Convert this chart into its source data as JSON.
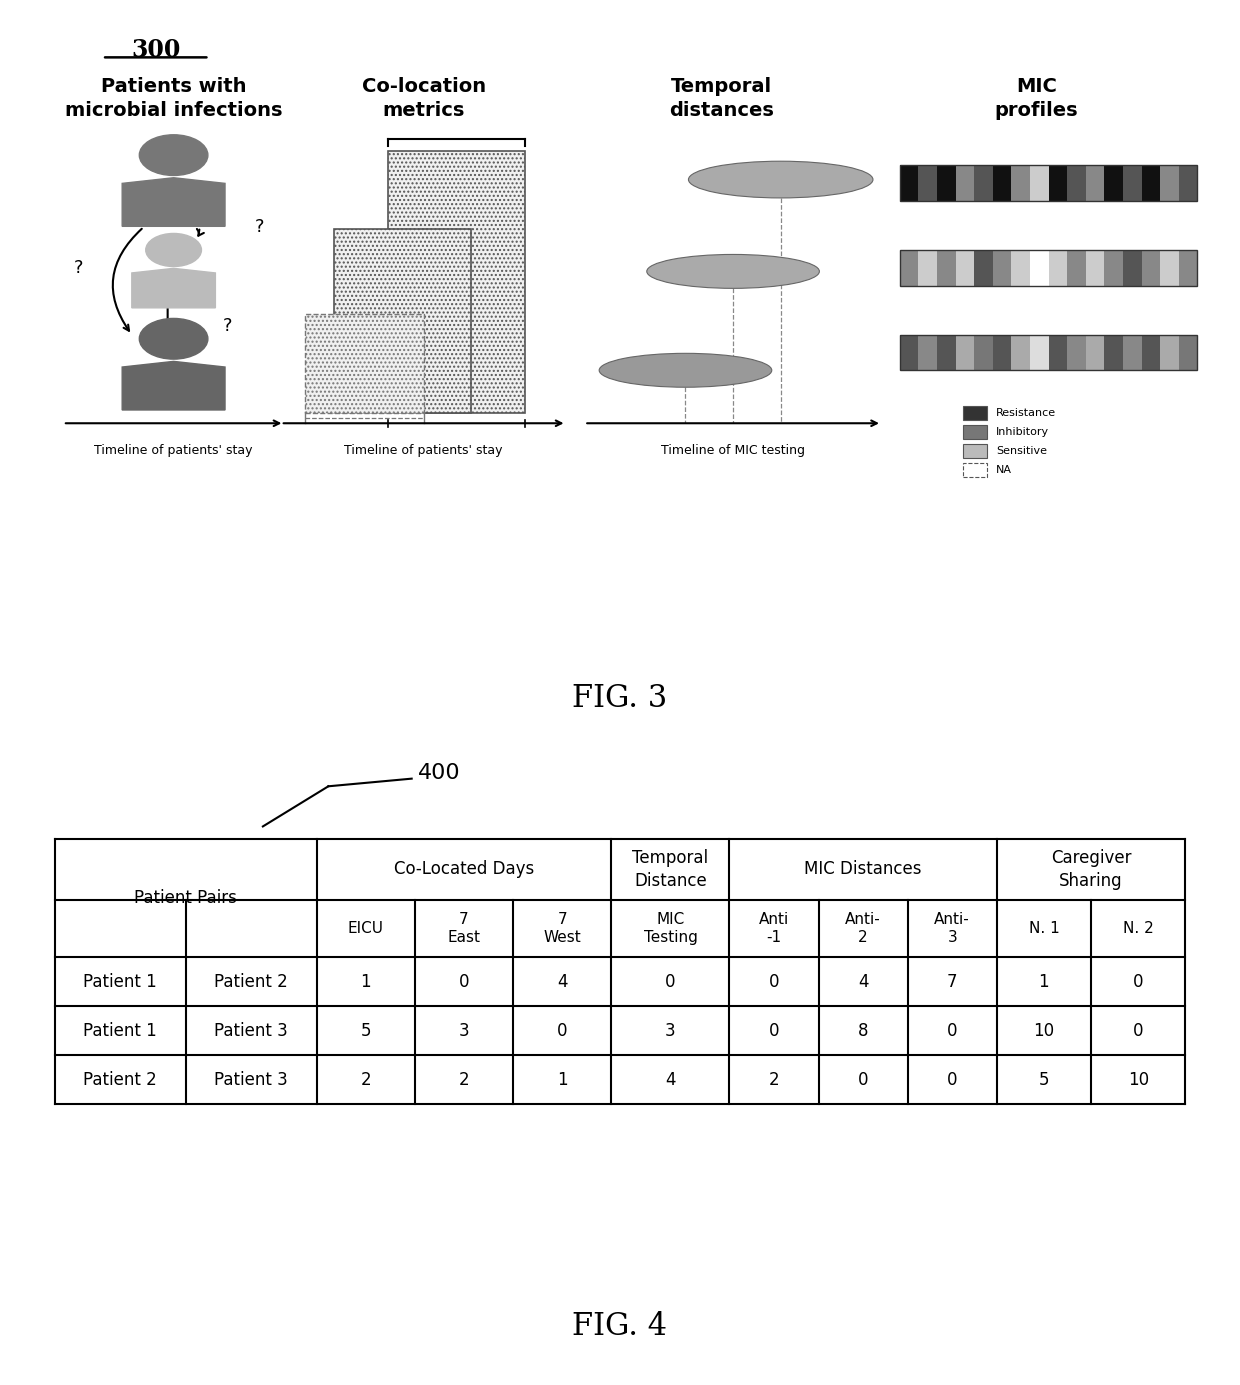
{
  "fig3_label": "300",
  "fig3_caption": "FIG. 3",
  "fig4_label": "400",
  "fig4_caption": "FIG. 4",
  "col_headers": [
    "Patients with\nmicrobial infections",
    "Co-location\nmetrics",
    "Temporal\ndistances",
    "MIC\nprofiles"
  ],
  "legend_items": [
    "Resistance",
    "Inhibitory",
    "Sensitive",
    "NA"
  ],
  "legend_colors": [
    "#333333",
    "#777777",
    "#bbbbbb",
    "#ffffff"
  ],
  "table_sub_headers": [
    "",
    "",
    "EICU",
    "7\nEast",
    "7\nWest",
    "MIC\nTesting",
    "Anti\n-1",
    "Anti-\n2",
    "Anti-\n3",
    "N. 1",
    "N. 2"
  ],
  "table_data_rows": [
    [
      "Patient 1",
      "Patient 2",
      "1",
      "0",
      "4",
      "0",
      "0",
      "4",
      "7",
      "1",
      "0"
    ],
    [
      "Patient 1",
      "Patient 3",
      "5",
      "3",
      "0",
      "3",
      "0",
      "8",
      "0",
      "10",
      "0"
    ],
    [
      "Patient 2",
      "Patient 3",
      "2",
      "2",
      "1",
      "4",
      "2",
      "0",
      "0",
      "5",
      "10"
    ]
  ],
  "bg_color": "#ffffff",
  "text_color": "#000000",
  "person_colors": [
    "#777777",
    "#bbbbbb",
    "#666666"
  ],
  "ellipse_colors": [
    "#aaaaaa",
    "#aaaaaa",
    "#999999"
  ],
  "mic_stripe_patterns": [
    [
      "#111111",
      "#555555",
      "#111111",
      "#888888",
      "#555555",
      "#111111",
      "#888888",
      "#cccccc",
      "#111111",
      "#555555",
      "#888888",
      "#111111",
      "#555555",
      "#111111",
      "#888888",
      "#555555"
    ],
    [
      "#888888",
      "#cccccc",
      "#888888",
      "#cccccc",
      "#555555",
      "#888888",
      "#cccccc",
      "#ffffff",
      "#cccccc",
      "#888888",
      "#cccccc",
      "#888888",
      "#555555",
      "#888888",
      "#cccccc",
      "#888888"
    ],
    [
      "#555555",
      "#888888",
      "#555555",
      "#aaaaaa",
      "#777777",
      "#555555",
      "#aaaaaa",
      "#dddddd",
      "#555555",
      "#888888",
      "#aaaaaa",
      "#555555",
      "#888888",
      "#555555",
      "#aaaaaa",
      "#777777"
    ]
  ]
}
